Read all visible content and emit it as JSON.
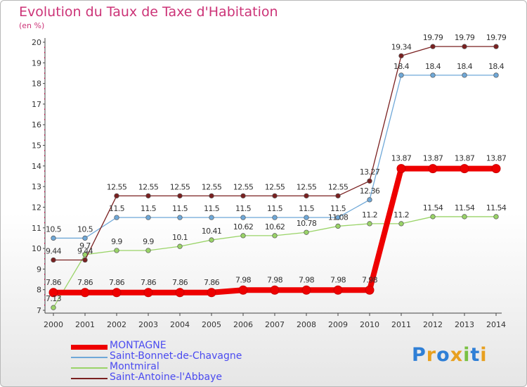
{
  "header": {
    "title": "Evolution du Taux de Taxe d'Habitation",
    "unit": "(en %)"
  },
  "brand": {
    "letters": [
      "P",
      "r",
      "o",
      "x",
      "i",
      "t",
      "i"
    ],
    "colors": [
      "#2f7fd6",
      "#e8a020",
      "#2f7fd6",
      "#e8a020",
      "#7ac143",
      "#2f7fd6",
      "#e8a020"
    ]
  },
  "chart_data": {
    "type": "line",
    "x": [
      2000,
      2001,
      2002,
      2003,
      2004,
      2005,
      2006,
      2007,
      2008,
      2009,
      2010,
      2011,
      2012,
      2013,
      2014
    ],
    "ylim": [
      7,
      20
    ],
    "yticks": [
      7,
      8,
      9,
      10,
      11,
      12,
      13,
      14,
      15,
      16,
      17,
      18,
      19,
      20
    ],
    "grid": false,
    "legend_position": "bottom-left",
    "series": [
      {
        "name": "MONTAGNE",
        "color": "#ee0000",
        "bold": true,
        "values": [
          7.86,
          7.86,
          7.86,
          7.86,
          7.86,
          7.86,
          7.98,
          7.98,
          7.98,
          7.98,
          7.98,
          13.87,
          13.87,
          13.87,
          13.87
        ],
        "labels": [
          "7.86",
          "7.86",
          "7.86",
          "7.86",
          "7.86",
          "7.86",
          "7.98",
          "7.98",
          "7.98",
          "7.98",
          "7.98",
          "13.87",
          "13.87",
          "13.87",
          "13.87"
        ]
      },
      {
        "name": "Saint-Bonnet-de-Chavagne",
        "color": "#6fa8d8",
        "values": [
          10.5,
          10.5,
          11.5,
          11.5,
          11.5,
          11.5,
          11.5,
          11.5,
          11.5,
          11.5,
          12.36,
          18.4,
          18.4,
          18.4,
          18.4
        ],
        "labels": [
          "10.5",
          "10.5",
          "11.5",
          "11.5",
          "11.5",
          "11.5",
          "11.5",
          "11.5",
          "11.5",
          "11.5",
          "12.36",
          "18.4",
          "18.4",
          "18.4",
          "18.4"
        ]
      },
      {
        "name": "Montmiral",
        "color": "#9ad468",
        "values": [
          7.13,
          9.7,
          9.9,
          9.9,
          10.1,
          10.41,
          10.62,
          10.62,
          10.78,
          11.08,
          11.2,
          11.2,
          11.54,
          11.54,
          11.54
        ],
        "labels": [
          "7.13",
          "9.7",
          "9.9",
          "9.9",
          "10.1",
          "10.41",
          "10.62",
          "10.62",
          "10.78",
          "11.08",
          "11.2",
          "11.2",
          "11.54",
          "11.54",
          "11.54"
        ]
      },
      {
        "name": "Saint-Antoine-l'Abbaye",
        "color": "#7a2020",
        "values": [
          9.44,
          9.44,
          12.55,
          12.55,
          12.55,
          12.55,
          12.55,
          12.55,
          12.55,
          12.55,
          13.27,
          19.34,
          19.79,
          19.79,
          19.79
        ],
        "labels": [
          "9.44",
          "9.44",
          "12.55",
          "12.55",
          "12.55",
          "12.55",
          "12.55",
          "12.55",
          "12.55",
          "12.55",
          "13.27",
          "19.34",
          "19.79",
          "19.79",
          "19.79"
        ]
      }
    ]
  }
}
